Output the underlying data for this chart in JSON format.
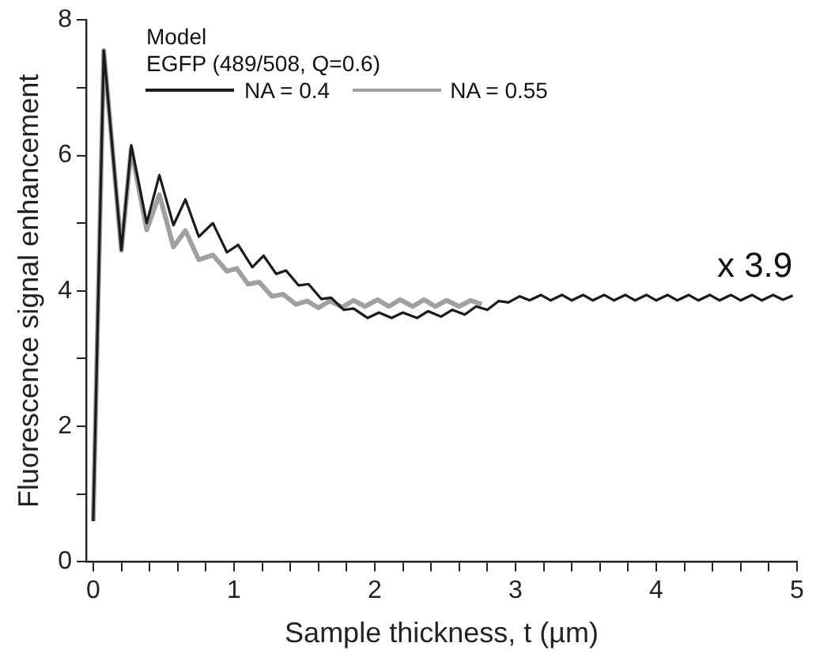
{
  "chart_data": {
    "type": "line",
    "xlabel": "Sample thickness, t (µm)",
    "ylabel": "Fluorescence signal enhancement",
    "legend_title": "Model\nEGFP (489/508, Q=0.6)",
    "legend": "top left",
    "grid": false,
    "marker": "none",
    "line_style": "solid",
    "xlim": [
      -0.05,
      5
    ],
    "xticks": [
      0,
      {
        "value": 0.2,
        "label": null
      },
      {
        "value": 0.4,
        "label": null
      },
      {
        "value": 0.6,
        "label": null
      },
      {
        "value": 0.8,
        "label": null
      },
      1,
      {
        "value": 1.2,
        "label": null
      },
      {
        "value": 1.4,
        "label": null
      },
      {
        "value": 1.6,
        "label": null
      },
      {
        "value": 1.8,
        "label": null
      },
      2,
      {
        "value": 2.2,
        "label": null
      },
      {
        "value": 2.4,
        "label": null
      },
      {
        "value": 2.6,
        "label": null
      },
      {
        "value": 2.8,
        "label": null
      },
      3,
      {
        "value": 3.2,
        "label": null
      },
      {
        "value": 3.4,
        "label": null
      },
      {
        "value": 3.6,
        "label": null
      },
      {
        "value": 3.8,
        "label": null
      },
      4,
      {
        "value": 4.2,
        "label": null
      },
      {
        "value": 4.4,
        "label": null
      },
      {
        "value": 4.6,
        "label": null
      },
      {
        "value": 4.8,
        "label": null
      },
      5
    ],
    "ylim": [
      0,
      8
    ],
    "yticks": [
      0,
      {
        "value": 1,
        "label": null
      },
      2,
      {
        "value": 3,
        "label": null
      },
      4,
      {
        "value": 5,
        "label": null
      },
      6,
      {
        "value": 7,
        "label": null
      },
      8
    ],
    "annotations": [
      {
        "text": "x 3.9",
        "x": 4.7,
        "y": 3.9
      }
    ],
    "series": [
      {
        "name": "NA = 0.4",
        "color": "#1a1a1a",
        "x": [
          0,
          0.075,
          0.2,
          0.27,
          0.38,
          0.47,
          0.57,
          0.655,
          0.75,
          0.85,
          0.95,
          1.03,
          1.13,
          1.21,
          1.3,
          1.37,
          1.46,
          1.53,
          1.62,
          1.69,
          1.78,
          1.85,
          1.95,
          2.03,
          2.12,
          2.2,
          2.3,
          2.38,
          2.47,
          2.55,
          2.64,
          2.72,
          2.8,
          2.88,
          2.95,
          3.03,
          3.1,
          3.18,
          3.25,
          3.33,
          3.4,
          3.48,
          3.55,
          3.63,
          3.7,
          3.78,
          3.85,
          3.93,
          4,
          4.08,
          4.15,
          4.23,
          4.3,
          4.38,
          4.45,
          4.53,
          4.6,
          4.68,
          4.75,
          4.83,
          4.9,
          4.97
        ],
        "values": [
          0.6,
          7.55,
          4.6,
          6.15,
          5.0,
          5.71,
          4.97,
          5.35,
          4.8,
          5.0,
          4.57,
          4.68,
          4.35,
          4.52,
          4.25,
          4.3,
          4.08,
          4.1,
          3.88,
          3.9,
          3.72,
          3.74,
          3.6,
          3.68,
          3.6,
          3.68,
          3.6,
          3.7,
          3.62,
          3.72,
          3.65,
          3.77,
          3.72,
          3.85,
          3.83,
          3.92,
          3.86,
          3.94,
          3.86,
          3.94,
          3.86,
          3.94,
          3.86,
          3.94,
          3.86,
          3.94,
          3.86,
          3.94,
          3.86,
          3.94,
          3.86,
          3.94,
          3.86,
          3.94,
          3.86,
          3.94,
          3.86,
          3.94,
          3.86,
          3.94,
          3.87,
          3.93
        ]
      },
      {
        "name": "NA = 0.55",
        "color": "#a0a0a0",
        "x": [
          0,
          0.075,
          0.2,
          0.27,
          0.38,
          0.47,
          0.57,
          0.655,
          0.75,
          0.85,
          0.95,
          1.02,
          1.1,
          1.18,
          1.27,
          1.35,
          1.44,
          1.52,
          1.6,
          1.68,
          1.77,
          1.85,
          1.93,
          2.02,
          2.1,
          2.18,
          2.27,
          2.35,
          2.43,
          2.51,
          2.6,
          2.68,
          2.76
        ],
        "values": [
          0.6,
          7.55,
          4.6,
          6.1,
          4.9,
          5.42,
          4.65,
          4.89,
          4.46,
          4.53,
          4.29,
          4.33,
          4.1,
          4.13,
          3.92,
          3.95,
          3.8,
          3.85,
          3.75,
          3.85,
          3.76,
          3.86,
          3.77,
          3.87,
          3.77,
          3.87,
          3.77,
          3.87,
          3.77,
          3.86,
          3.77,
          3.86,
          3.8
        ]
      }
    ]
  }
}
